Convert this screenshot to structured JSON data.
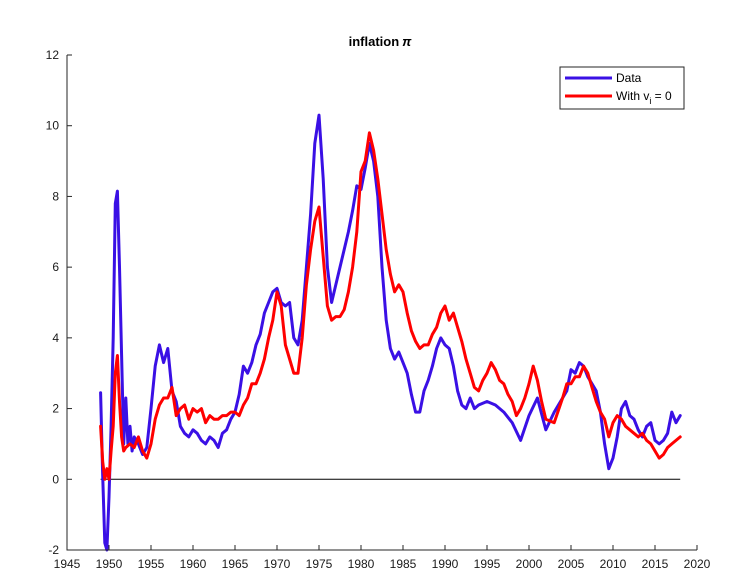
{
  "chart_data": {
    "type": "line",
    "title": "inflation",
    "title_symbol": "π",
    "xlabel": "",
    "ylabel": "",
    "xlim": [
      1945,
      2020
    ],
    "ylim": [
      -2,
      12
    ],
    "xticks": [
      1945,
      1950,
      1955,
      1960,
      1965,
      1970,
      1975,
      1980,
      1985,
      1990,
      1995,
      2000,
      2005,
      2010,
      2015,
      2020
    ],
    "yticks": [
      -2,
      0,
      2,
      4,
      6,
      8,
      10,
      12
    ],
    "grid": false,
    "zero_line": true,
    "legend": {
      "position": "top-right",
      "entries": [
        {
          "label": "Data",
          "color": "#3a10e5"
        },
        {
          "label": "With v",
          "subscript": "i",
          "suffix": " = 0",
          "color": "#ff0000"
        }
      ]
    },
    "series": [
      {
        "name": "Data",
        "color": "#3a10e5",
        "x": [
          1949.0,
          1949.25,
          1949.5,
          1949.75,
          1950.0,
          1950.25,
          1950.5,
          1950.75,
          1951.0,
          1951.25,
          1951.5,
          1951.75,
          1952.0,
          1952.25,
          1952.5,
          1952.75,
          1953.0,
          1953.5,
          1954.0,
          1954.5,
          1955.0,
          1955.5,
          1956.0,
          1956.5,
          1957.0,
          1957.5,
          1958.0,
          1958.5,
          1959.0,
          1959.5,
          1960.0,
          1960.5,
          1961.0,
          1961.5,
          1962.0,
          1962.5,
          1963.0,
          1963.5,
          1964.0,
          1964.5,
          1965.0,
          1965.5,
          1966.0,
          1966.5,
          1967.0,
          1967.5,
          1968.0,
          1968.5,
          1969.0,
          1969.5,
          1970.0,
          1970.5,
          1971.0,
          1971.5,
          1972.0,
          1972.5,
          1973.0,
          1973.5,
          1974.0,
          1974.5,
          1975.0,
          1975.5,
          1976.0,
          1976.5,
          1977.0,
          1977.5,
          1978.0,
          1978.5,
          1979.0,
          1979.5,
          1980.0,
          1980.5,
          1981.0,
          1981.5,
          1982.0,
          1982.5,
          1983.0,
          1983.5,
          1984.0,
          1984.5,
          1985.0,
          1985.5,
          1986.0,
          1986.5,
          1987.0,
          1987.5,
          1988.0,
          1988.5,
          1989.0,
          1989.5,
          1990.0,
          1990.5,
          1991.0,
          1991.5,
          1992.0,
          1992.5,
          1993.0,
          1993.5,
          1994.0,
          1995.0,
          1996.0,
          1997.0,
          1998.0,
          1999.0,
          2000.0,
          2001.0,
          2002.0,
          2003.0,
          2004.0,
          2004.5,
          2005.0,
          2005.5,
          2006.0,
          2006.5,
          2007.0,
          2007.5,
          2008.0,
          2008.5,
          2009.0,
          2009.5,
          2010.0,
          2010.5,
          2011.0,
          2011.5,
          2012.0,
          2012.5,
          2013.0,
          2013.5,
          2014.0,
          2014.5,
          2015.0,
          2015.5,
          2016.0,
          2016.5,
          2017.0,
          2017.5,
          2018.0
        ],
        "y": [
          2.45,
          0.1,
          -1.8,
          -2.0,
          -0.5,
          1.5,
          4.0,
          7.8,
          8.15,
          6.0,
          3.5,
          1.0,
          2.3,
          1.0,
          1.5,
          0.8,
          1.2,
          1.0,
          0.7,
          0.9,
          2.0,
          3.2,
          3.8,
          3.3,
          3.7,
          2.5,
          2.2,
          1.5,
          1.3,
          1.2,
          1.4,
          1.3,
          1.1,
          1.0,
          1.2,
          1.1,
          0.9,
          1.3,
          1.4,
          1.7,
          1.9,
          2.4,
          3.2,
          3.0,
          3.3,
          3.8,
          4.1,
          4.7,
          5.0,
          5.3,
          5.4,
          5.0,
          4.9,
          5.0,
          4.0,
          3.8,
          4.5,
          6.0,
          7.5,
          9.5,
          10.3,
          8.5,
          6.0,
          5.0,
          5.5,
          6.0,
          6.5,
          7.0,
          7.6,
          8.3,
          8.2,
          8.8,
          9.5,
          9.0,
          8.0,
          6.0,
          4.5,
          3.7,
          3.4,
          3.6,
          3.3,
          3.0,
          2.4,
          1.9,
          1.9,
          2.5,
          2.8,
          3.2,
          3.7,
          4.0,
          3.8,
          3.7,
          3.2,
          2.5,
          2.1,
          2.0,
          2.3,
          2.0,
          2.1,
          2.2,
          2.1,
          1.9,
          1.6,
          1.1,
          1.8,
          2.3,
          1.4,
          1.9,
          2.3,
          2.5,
          3.1,
          3.0,
          3.3,
          3.2,
          2.9,
          2.7,
          2.5,
          1.9,
          1.0,
          0.3,
          0.6,
          1.2,
          2.0,
          2.2,
          1.8,
          1.7,
          1.4,
          1.2,
          1.5,
          1.6,
          1.1,
          1.0,
          1.1,
          1.3,
          1.9,
          1.6,
          1.8
        ]
      },
      {
        "name": "With v_i = 0",
        "color": "#ff0000",
        "x": [
          1949.0,
          1949.25,
          1949.5,
          1949.75,
          1950.0,
          1950.25,
          1950.5,
          1950.75,
          1951.0,
          1951.25,
          1951.5,
          1951.75,
          1952.0,
          1952.5,
          1953.0,
          1953.5,
          1954.0,
          1954.5,
          1955.0,
          1955.5,
          1956.0,
          1956.5,
          1957.0,
          1957.5,
          1958.0,
          1958.5,
          1959.0,
          1959.5,
          1960.0,
          1960.5,
          1961.0,
          1961.5,
          1962.0,
          1962.5,
          1963.0,
          1963.5,
          1964.0,
          1964.5,
          1965.0,
          1965.5,
          1966.0,
          1966.5,
          1967.0,
          1967.5,
          1968.0,
          1968.5,
          1969.0,
          1969.5,
          1970.0,
          1970.5,
          1971.0,
          1971.5,
          1972.0,
          1972.5,
          1973.0,
          1973.5,
          1974.0,
          1974.5,
          1975.0,
          1975.5,
          1976.0,
          1976.5,
          1977.0,
          1977.5,
          1978.0,
          1978.5,
          1979.0,
          1979.5,
          1980.0,
          1980.5,
          1981.0,
          1981.5,
          1982.0,
          1982.5,
          1983.0,
          1983.5,
          1984.0,
          1984.5,
          1985.0,
          1985.5,
          1986.0,
          1986.5,
          1987.0,
          1987.5,
          1988.0,
          1988.5,
          1989.0,
          1989.5,
          1990.0,
          1990.5,
          1991.0,
          1991.5,
          1992.0,
          1992.5,
          1993.0,
          1993.5,
          1994.0,
          1994.5,
          1995.0,
          1995.5,
          1996.0,
          1996.5,
          1997.0,
          1997.5,
          1998.0,
          1998.5,
          1999.0,
          1999.5,
          2000.0,
          2000.5,
          2001.0,
          2001.5,
          2002.0,
          2003.0,
          2004.0,
          2004.5,
          2005.0,
          2005.5,
          2006.0,
          2006.5,
          2007.0,
          2007.5,
          2008.0,
          2008.5,
          2009.0,
          2009.5,
          2010.0,
          2010.5,
          2011.0,
          2011.5,
          2012.0,
          2012.5,
          2013.0,
          2013.5,
          2014.0,
          2014.5,
          2015.0,
          2015.5,
          2016.0,
          2016.5,
          2017.0,
          2017.5,
          2018.0
        ],
        "y": [
          1.5,
          0.5,
          0.0,
          0.3,
          0.0,
          0.8,
          1.5,
          3.0,
          3.5,
          2.2,
          1.2,
          0.8,
          0.9,
          1.0,
          0.9,
          1.2,
          0.8,
          0.6,
          1.0,
          1.7,
          2.1,
          2.3,
          2.3,
          2.6,
          1.8,
          2.0,
          2.1,
          1.7,
          2.0,
          1.9,
          2.0,
          1.6,
          1.8,
          1.7,
          1.7,
          1.8,
          1.8,
          1.9,
          1.9,
          1.8,
          2.1,
          2.3,
          2.7,
          2.7,
          3.0,
          3.4,
          4.0,
          4.5,
          5.3,
          4.9,
          3.8,
          3.4,
          3.0,
          3.0,
          4.0,
          5.5,
          6.5,
          7.3,
          7.7,
          6.3,
          4.9,
          4.5,
          4.6,
          4.6,
          4.8,
          5.3,
          6.0,
          7.0,
          8.7,
          9.0,
          9.8,
          9.3,
          8.5,
          7.5,
          6.5,
          5.8,
          5.3,
          5.5,
          5.3,
          4.7,
          4.2,
          3.9,
          3.7,
          3.8,
          3.8,
          4.1,
          4.3,
          4.7,
          4.9,
          4.5,
          4.7,
          4.3,
          3.9,
          3.4,
          3.0,
          2.6,
          2.5,
          2.8,
          3.0,
          3.3,
          3.1,
          2.8,
          2.7,
          2.4,
          2.2,
          1.8,
          2.0,
          2.3,
          2.7,
          3.2,
          2.8,
          2.2,
          1.7,
          1.6,
          2.3,
          2.7,
          2.7,
          2.9,
          2.9,
          3.2,
          3.0,
          2.6,
          2.2,
          1.9,
          1.7,
          1.2,
          1.6,
          1.8,
          1.7,
          1.5,
          1.4,
          1.3,
          1.2,
          1.3,
          1.1,
          1.0,
          0.8,
          0.6,
          0.7,
          0.9,
          1.0,
          1.1,
          1.2
        ]
      }
    ]
  }
}
